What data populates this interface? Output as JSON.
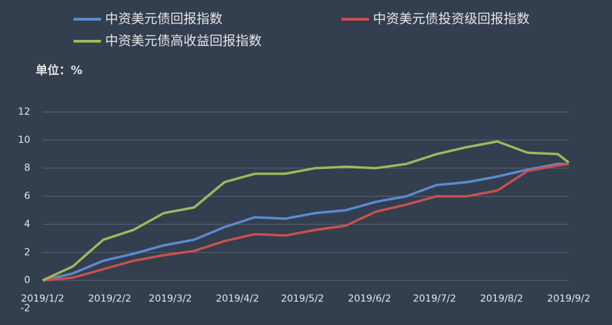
{
  "chart_data": {
    "type": "line",
    "unit_label": "单位：%",
    "x": [
      "2019/1/2",
      "2019/1/16",
      "2019/1/30",
      "2019/2/13",
      "2019/2/27",
      "2019/3/13",
      "2019/3/27",
      "2019/4/10",
      "2019/4/24",
      "2019/5/8",
      "2019/5/22",
      "2019/6/5",
      "2019/6/19",
      "2019/7/3",
      "2019/7/17",
      "2019/7/31",
      "2019/8/14",
      "2019/8/28",
      "2019/9/2"
    ],
    "series": [
      {
        "name": "中资美元债回报指数",
        "color": "#5b8bd0",
        "values": [
          0,
          0.5,
          1.4,
          1.9,
          2.5,
          2.9,
          3.8,
          4.5,
          4.4,
          4.8,
          5.0,
          5.6,
          6.0,
          6.8,
          7.0,
          7.4,
          7.9,
          8.3,
          8.3
        ]
      },
      {
        "name": "中资美元债投资级回报指数",
        "color": "#c9504f",
        "values": [
          0,
          0.2,
          0.8,
          1.4,
          1.8,
          2.1,
          2.8,
          3.3,
          3.2,
          3.6,
          3.9,
          4.9,
          5.4,
          6.0,
          6.0,
          6.4,
          7.8,
          8.2,
          8.3
        ]
      },
      {
        "name": "中资美元债高收益回报指数",
        "color": "#9bbb59",
        "values": [
          0,
          1.0,
          2.9,
          3.6,
          4.8,
          5.2,
          7.0,
          7.6,
          7.6,
          8.0,
          8.1,
          8.0,
          8.3,
          9.0,
          9.5,
          9.9,
          9.1,
          9.0,
          8.4
        ]
      }
    ],
    "xlim": [
      "2019/1/2",
      "2019/9/2"
    ],
    "xticks": [
      "2019/1/2",
      "2019/2/2",
      "2019/3/2",
      "2019/4/2",
      "2019/5/2",
      "2019/6/2",
      "2019/7/2",
      "2019/8/2",
      "2019/9/2"
    ],
    "ylim": [
      -2,
      12
    ],
    "yticks": [
      -2,
      0,
      2,
      4,
      6,
      8,
      10,
      12
    ],
    "grid": true,
    "legend": "top"
  }
}
